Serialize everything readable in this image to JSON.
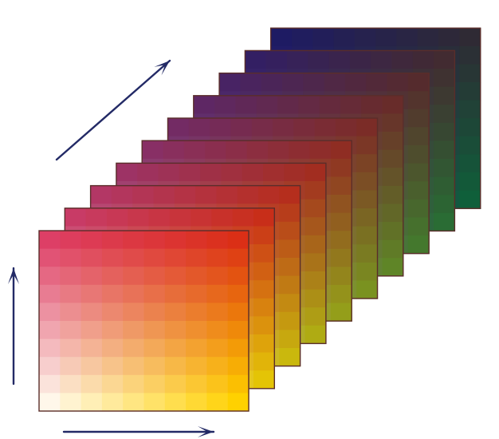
{
  "title": "",
  "grid": {
    "layers": 10,
    "rows": 10,
    "cols": 10
  },
  "colors": {
    "back_top_left": "#1e1b63",
    "back_top_right": "#2f2a34",
    "back_bottom_left": "#37217b",
    "back_bottom_right": "#0f5f3a",
    "front_top_left": "#dd3f66",
    "front_top_right": "#db2f16",
    "front_bottom_left": "#fff7ea",
    "front_bottom_right": "#ffd100",
    "arrow": "#232a66",
    "border": "#5a2d2a"
  },
  "arrows": {
    "horizontal_icon": "arrow-right-icon",
    "vertical_icon": "arrow-up-icon",
    "depth_icon": "arrow-diagonal-icon"
  }
}
